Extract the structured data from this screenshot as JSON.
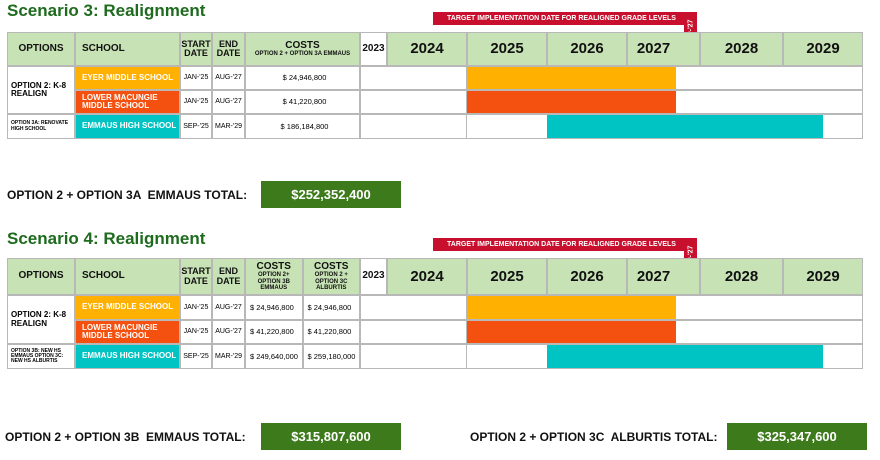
{
  "scenarios": [
    {
      "title": "Scenario 3: Realignment",
      "banner": "TARGET IMPLEMENTATION DATE FOR REALIGNED GRADE LEVELS",
      "marker": "SEP-'27",
      "headers": {
        "options": "OPTIONS",
        "school": "SCHOOL",
        "start": "START DATE",
        "end": "END DATE",
        "costs": [
          {
            "title": "COSTS",
            "sub": "OPTION 2 + OPTION 3A EMMAUS"
          }
        ],
        "years": [
          "2023",
          "2024",
          "2025",
          "2026",
          "2027",
          "2028",
          "2029"
        ]
      },
      "groups": [
        {
          "option": "OPTION 2: K-8 REALIGN",
          "rows": [
            {
              "school": "EYER MIDDLE SCHOOL",
              "color": "#ffb000",
              "start": "JAN-'25",
              "end": "AUG-'27",
              "costs": [
                "$ 24,946,800"
              ]
            },
            {
              "school": "LOWER MACUNGIE MIDDLE SCHOOL",
              "color": "#f4500f",
              "start": "JAN-'25",
              "end": "AUG-'27",
              "costs": [
                "$ 41,220,800"
              ]
            }
          ]
        },
        {
          "option": "OPTION 3A: RENOVATE HIGH SCHOOL",
          "rows": [
            {
              "school": "EMMAUS HIGH SCHOOL",
              "color": "#00c4c4",
              "start": "SEP-'25",
              "end": "MAR-'29",
              "costs": [
                "$ 186,184,800"
              ]
            }
          ]
        }
      ],
      "totals": [
        {
          "label": "OPTION 2 + OPTION 3A  EMMAUS TOTAL:",
          "value": "$252,352,400"
        }
      ]
    },
    {
      "title": "Scenario 4: Realignment",
      "banner": "TARGET IMPLEMENTATION DATE FOR REALIGNED GRADE LEVELS",
      "marker": "SEP-'27",
      "headers": {
        "options": "OPTIONS",
        "school": "SCHOOL",
        "start": "START DATE",
        "end": "END DATE",
        "costs": [
          {
            "title": "COSTS",
            "sub": "OPTION 2+ OPTION 3B EMMAUS"
          },
          {
            "title": "COSTS",
            "sub": "OPTION 2 + OPTION 3C ALBURTIS"
          }
        ],
        "years": [
          "2023",
          "2024",
          "2025",
          "2026",
          "2027",
          "2028",
          "2029"
        ]
      },
      "groups": [
        {
          "option": "OPTION 2: K-8 REALIGN",
          "rows": [
            {
              "school": "EYER MIDDLE SCHOOL",
              "color": "#ffb000",
              "start": "JAN-'25",
              "end": "AUG-'27",
              "costs": [
                "$ 24,946,800",
                "$ 24,946,800"
              ]
            },
            {
              "school": "LOWER MACUNGIE MIDDLE SCHOOL",
              "color": "#f4500f",
              "start": "JAN-'25",
              "end": "AUG-'27",
              "costs": [
                "$ 41,220,800",
                "$ 41,220,800"
              ]
            }
          ]
        },
        {
          "option": "OPTION 3B: NEW HS EMMAUS OPTION 3C: NEW HS ALBURTIS",
          "rows": [
            {
              "school": "EMMAUS HIGH SCHOOL",
              "color": "#00c4c4",
              "start": "SEP-'25",
              "end": "MAR-'29",
              "costs": [
                "$ 249,640,000",
                "$ 259,180,000"
              ]
            }
          ]
        }
      ],
      "totals": [
        {
          "label": "OPTION 2 + OPTION 3B  EMMAUS TOTAL:",
          "value": "$315,807,600"
        },
        {
          "label": "OPTION 2 + OPTION 3C  ALBURTIS TOTAL:",
          "value": "$325,347,600"
        }
      ]
    }
  ]
}
